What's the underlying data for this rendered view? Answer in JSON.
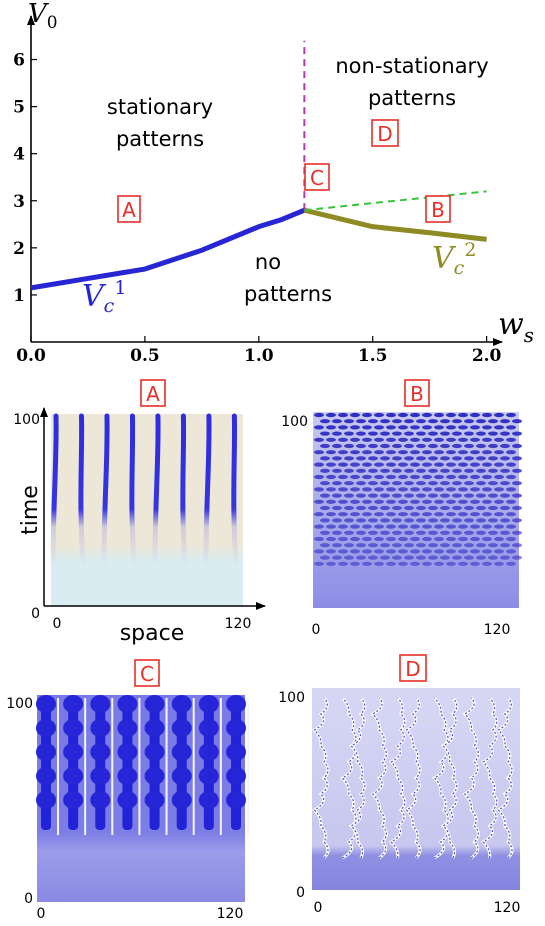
{
  "colors": {
    "vc1": "#2626d4",
    "vc2": "#8e8a24",
    "dashed_green": "#3cc23c",
    "dashed_magenta": "#b03aa8",
    "tag": "#e8302a",
    "stripe": "#2d2ce0",
    "panel_bg_A_top": "#ede7d8",
    "panel_bg_A_bottom": "#d8ecf1",
    "panel_base": "#8c8ce6"
  },
  "chart_data": [
    {
      "type": "line",
      "title": "",
      "xlabel": "w_s",
      "ylabel": "V_0",
      "xlim": [
        0,
        2.05
      ],
      "ylim": [
        0,
        6.5
      ],
      "x_ticks": [
        "0.0",
        "0.5",
        "1.0",
        "1.5",
        "2.0"
      ],
      "y_ticks": [
        "1",
        "2",
        "3",
        "4",
        "5",
        "6"
      ],
      "series": [
        {
          "name": "V_c^1",
          "style": "solid",
          "color": "#2626d4",
          "x": [
            0,
            0.25,
            0.5,
            0.75,
            1.0,
            1.1,
            1.2
          ],
          "y": [
            1.15,
            1.35,
            1.55,
            1.95,
            2.45,
            2.6,
            2.8
          ]
        },
        {
          "name": "V_c^2",
          "style": "solid",
          "color": "#8e8a24",
          "x": [
            1.2,
            1.5,
            1.75,
            2.0
          ],
          "y": [
            2.8,
            2.45,
            2.32,
            2.18
          ]
        },
        {
          "style": "dashed",
          "color": "#3cc23c",
          "x": [
            1.2,
            2.0
          ],
          "y": [
            2.8,
            3.2
          ]
        },
        {
          "style": "dashed",
          "color": "#b03aa8",
          "x": [
            1.2,
            1.2
          ],
          "y": [
            2.8,
            6.4
          ]
        }
      ],
      "annotations": {
        "stationary": [
          "stationary",
          "patterns"
        ],
        "non_stationary": [
          "non-stationary",
          "patterns"
        ],
        "no_patterns": [
          "no",
          "patterns"
        ],
        "vc1_label": {
          "base": "V",
          "sub": "c",
          "sup": "1"
        },
        "vc2_label": {
          "base": "V",
          "sub": "c",
          "sup": "2"
        },
        "axis_x": {
          "base": "w",
          "sub": "s"
        },
        "axis_y": {
          "base": "V",
          "sub": "0"
        },
        "tags": [
          "A",
          "B",
          "C",
          "D"
        ]
      }
    },
    {
      "type": "heatmap",
      "panel": "A",
      "xlabel": "space",
      "ylabel": "time",
      "x_ticks": [
        "0",
        "120"
      ],
      "y_ticks": [
        "0",
        "100"
      ],
      "stripes": 8,
      "onset_time_fraction": 0.28
    },
    {
      "type": "heatmap",
      "panel": "B",
      "x_ticks": [
        "0",
        "120"
      ],
      "y_ticks": [
        "100"
      ]
    },
    {
      "type": "heatmap",
      "panel": "C",
      "x_ticks": [
        "0",
        "120"
      ],
      "y_ticks": [
        "0",
        "100"
      ],
      "stripes": 8
    },
    {
      "type": "heatmap",
      "panel": "D",
      "x_ticks": [
        "0",
        "120"
      ],
      "y_ticks": [
        "0",
        "100"
      ]
    }
  ]
}
